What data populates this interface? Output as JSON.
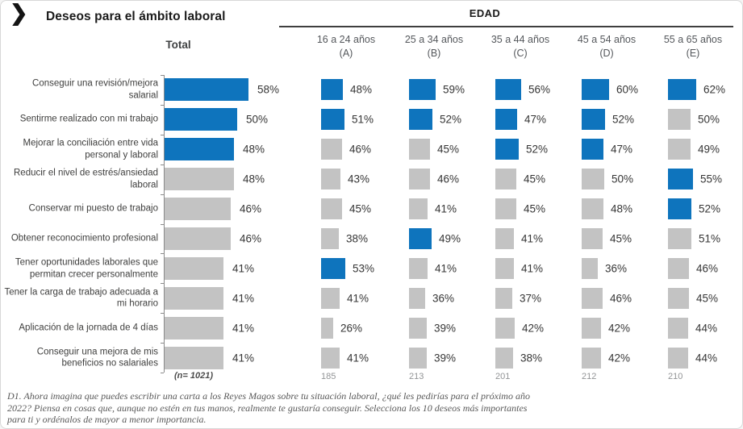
{
  "title": "Deseos para el ámbito laboral",
  "logo_icon": "chevron-right-icon",
  "header": {
    "total_label": "Total",
    "group_label": "EDAD",
    "columns": [
      {
        "label": "16 a 24 años (A)",
        "base": "185"
      },
      {
        "label": "25 a 34 años (B)",
        "base": "213"
      },
      {
        "label": "35 a 44 años (C)",
        "base": "201"
      },
      {
        "label": "45 a 54 años (D)",
        "base": "212"
      },
      {
        "label": "55 a 65 años (E)",
        "base": "210"
      }
    ]
  },
  "base_row": {
    "total_label": "(n= 1021)"
  },
  "footnote": "D1. Ahora imagina que puedes escribir una carta a los Reyes Magos sobre tu situación laboral, ¿qué les pedirías para el próximo año 2022? Piensa en cosas que, aunque no estén en tus manos, realmente te gustaría conseguir. Selecciona los 10 deseos más importantes para ti y ordénalos de mayor a menor importancia.",
  "colors": {
    "bar_highlight": "#0e74bd",
    "bar_default": "#c3c3c3",
    "axis_line": "#8a8a8a",
    "header_rule": "#3f3f3f"
  },
  "chart_data": {
    "type": "bar",
    "orientation": "horizontal",
    "title": "Deseos para el ámbito laboral",
    "group_header": "EDAD",
    "value_suffix": "%",
    "xlim": [
      0,
      100
    ],
    "categories": [
      "Conseguir una revisión/mejora salarial",
      "Sentirme realizado con mi trabajo",
      "Mejorar la conciliación entre vida personal y laboral",
      "Reducir el nivel de estrés/ansiedad laboral",
      "Conservar mi puesto de trabajo",
      "Obtener reconocimiento profesional",
      "Tener oportunidades laborales que permitan crecer personalmente",
      "Tener la carga de trabajo adecuada a mi horario",
      "Aplicación de la jornada de 4 días",
      "Conseguir una mejora de mis beneficios no salariales"
    ],
    "series": [
      {
        "name": "Total",
        "base": 1021,
        "values": [
          58,
          50,
          48,
          48,
          46,
          46,
          41,
          41,
          41,
          41
        ],
        "highlight": [
          true,
          true,
          true,
          false,
          false,
          false,
          false,
          false,
          false,
          false
        ]
      },
      {
        "name": "16 a 24 años (A)",
        "base": 185,
        "values": [
          48,
          51,
          46,
          43,
          45,
          38,
          53,
          41,
          26,
          41
        ],
        "highlight": [
          true,
          true,
          false,
          false,
          false,
          false,
          true,
          false,
          false,
          false
        ]
      },
      {
        "name": "25 a 34 años (B)",
        "base": 213,
        "values": [
          59,
          52,
          45,
          46,
          41,
          49,
          41,
          36,
          39,
          39
        ],
        "highlight": [
          true,
          true,
          false,
          false,
          false,
          true,
          false,
          false,
          false,
          false
        ]
      },
      {
        "name": "35 a 44 años (C)",
        "base": 201,
        "values": [
          56,
          47,
          52,
          45,
          45,
          41,
          41,
          37,
          42,
          38
        ],
        "highlight": [
          true,
          true,
          true,
          false,
          false,
          false,
          false,
          false,
          false,
          false
        ]
      },
      {
        "name": "45 a 54 años (D)",
        "base": 212,
        "values": [
          60,
          52,
          47,
          50,
          48,
          45,
          36,
          46,
          42,
          42
        ],
        "highlight": [
          true,
          true,
          true,
          false,
          false,
          false,
          false,
          false,
          false,
          false
        ]
      },
      {
        "name": "55 a 65 años (E)",
        "base": 210,
        "values": [
          62,
          50,
          49,
          55,
          52,
          51,
          46,
          45,
          44,
          44
        ],
        "highlight": [
          true,
          false,
          false,
          true,
          true,
          false,
          false,
          false,
          false,
          false
        ]
      }
    ]
  }
}
